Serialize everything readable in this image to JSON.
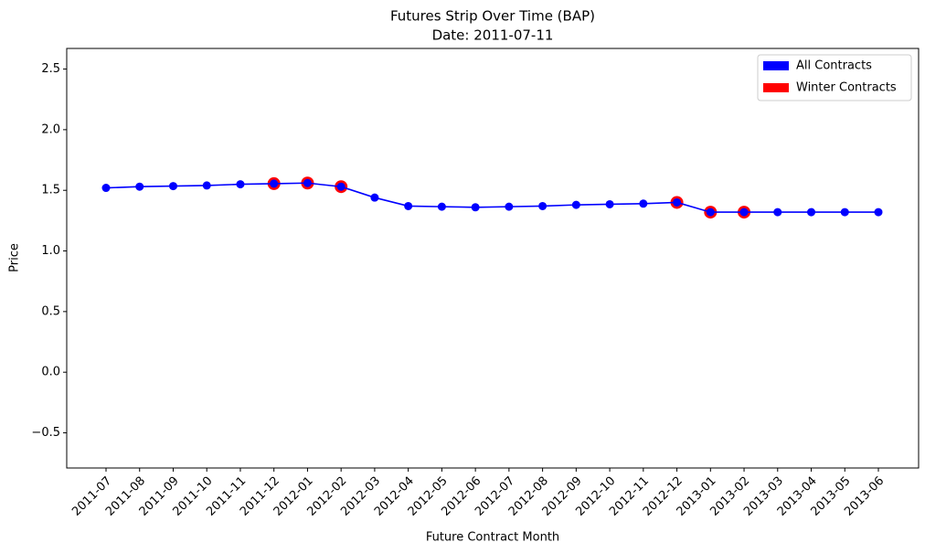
{
  "chart_data": {
    "type": "line",
    "title": "Futures Strip Over Time (BAP)",
    "subtitle": "Date: 2011-07-11",
    "xlabel": "Future Contract Month",
    "ylabel": "Price",
    "categories": [
      "2011-07",
      "2011-08",
      "2011-09",
      "2011-10",
      "2011-11",
      "2011-12",
      "2012-01",
      "2012-02",
      "2012-03",
      "2012-04",
      "2012-05",
      "2012-06",
      "2012-07",
      "2012-08",
      "2012-09",
      "2012-10",
      "2012-11",
      "2012-12",
      "2013-01",
      "2013-02",
      "2013-03",
      "2013-04",
      "2013-05",
      "2013-06"
    ],
    "series": [
      {
        "name": "All Contracts",
        "color": "#0000ff",
        "values": [
          1.52,
          1.53,
          1.535,
          1.54,
          1.55,
          1.555,
          1.56,
          1.53,
          1.44,
          1.37,
          1.365,
          1.36,
          1.365,
          1.37,
          1.38,
          1.385,
          1.39,
          1.4,
          1.32,
          1.32,
          1.32,
          1.32,
          1.32,
          1.32
        ]
      },
      {
        "name": "Winter Contracts",
        "color": "#ff0000",
        "values": [
          null,
          null,
          null,
          null,
          null,
          1.555,
          1.56,
          1.53,
          null,
          null,
          null,
          null,
          null,
          null,
          null,
          null,
          null,
          1.4,
          1.32,
          1.32,
          null,
          null,
          null,
          null
        ]
      }
    ],
    "ylim": [
      -0.79,
      2.67
    ],
    "yticks": [
      {
        "value": -0.5,
        "label": "−0.5"
      },
      {
        "value": 0,
        "label": "0.0"
      },
      0.5,
      {
        "value": 1,
        "label": "1.0"
      },
      1.5,
      {
        "value": 2,
        "label": "2.0"
      },
      2.5
    ],
    "legend": "upper right"
  }
}
